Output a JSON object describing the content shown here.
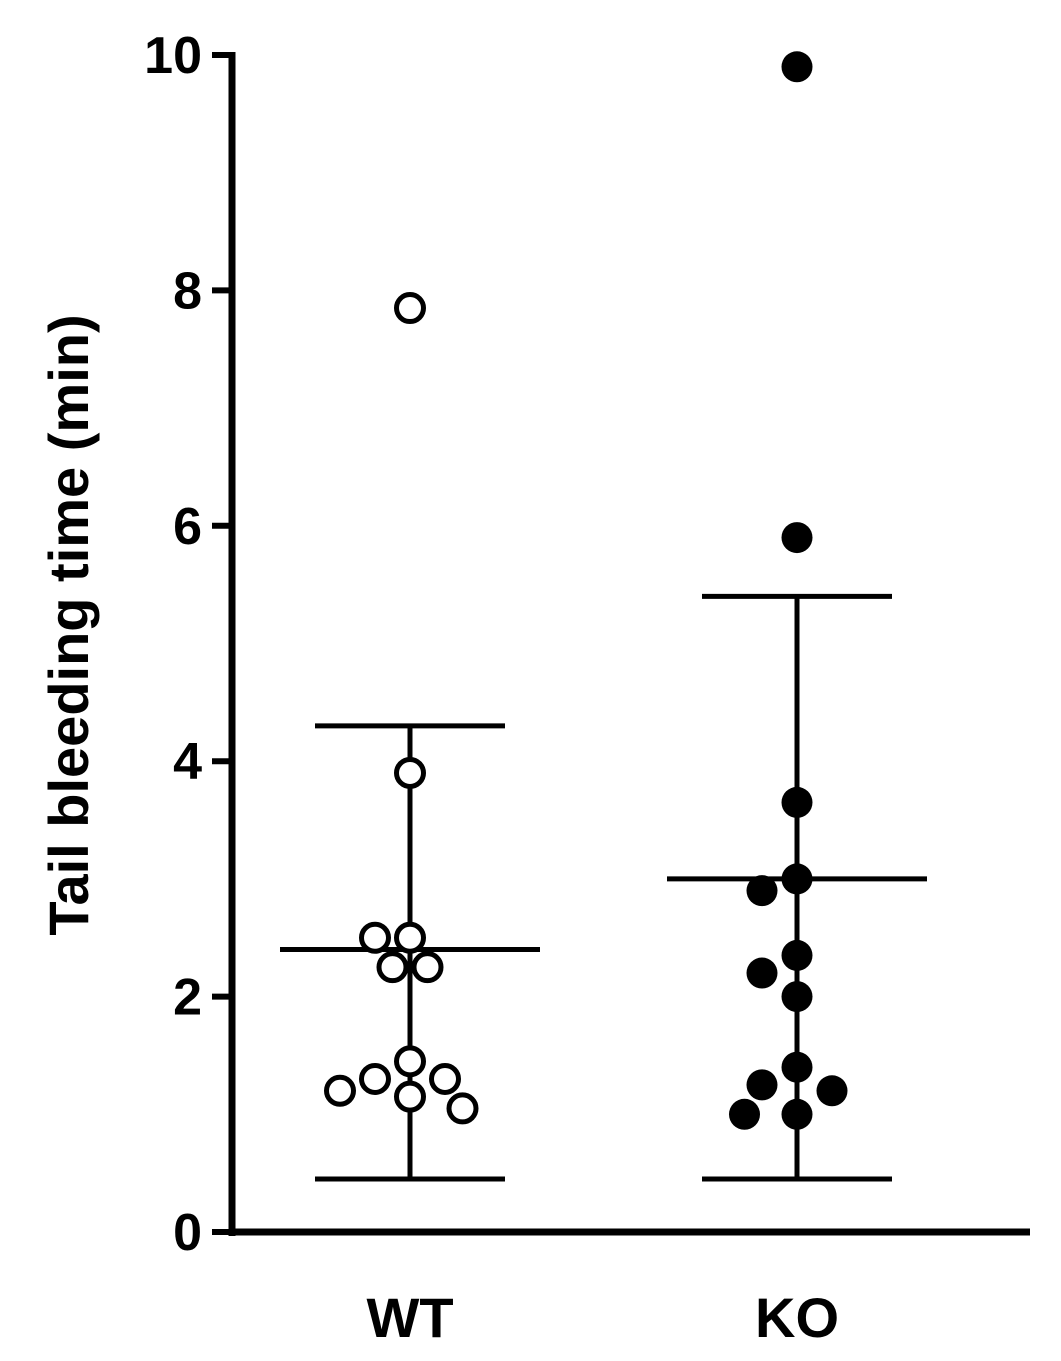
{
  "chart_data": {
    "type": "scatter",
    "title": "",
    "xlabel": "",
    "ylabel": "Tail bleeding time (min)",
    "ylim": [
      0,
      10
    ],
    "yticks": [
      "0",
      "2",
      "4",
      "6",
      "8",
      "10"
    ],
    "categories": [
      "WT",
      "KO"
    ],
    "grid": false,
    "series": [
      {
        "category": "WT",
        "marker": "open-circle",
        "color": "#000000",
        "values": [
          7.85,
          3.9,
          2.5,
          2.5,
          2.25,
          2.25,
          1.45,
          1.3,
          1.3,
          1.2,
          1.15,
          1.05
        ],
        "mean": 2.4,
        "error_low": 0.45,
        "error_high": 4.3
      },
      {
        "category": "KO",
        "marker": "filled-circle",
        "color": "#000000",
        "values": [
          9.9,
          5.9,
          3.65,
          3.0,
          2.9,
          2.35,
          2.2,
          2.0,
          1.4,
          1.25,
          1.2,
          1.0,
          1.0
        ],
        "mean": 3.0,
        "error_low": 0.45,
        "error_high": 5.4
      }
    ]
  }
}
